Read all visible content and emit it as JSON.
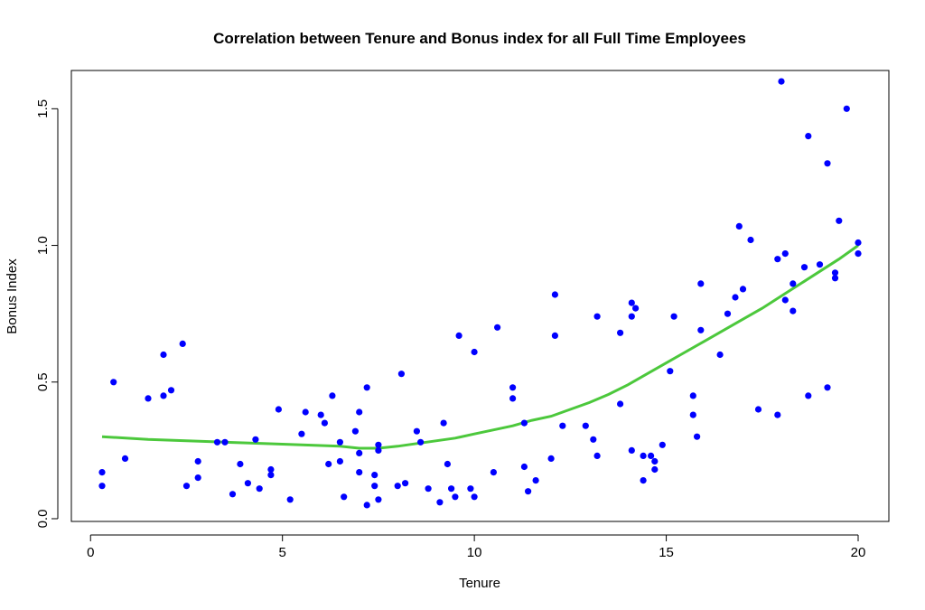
{
  "chart_data": {
    "type": "scatter",
    "title": "Correlation between Tenure and Bonus index for all Full Time Employees",
    "xlabel": "Tenure",
    "ylabel": "Bonus Index",
    "xlim": [
      -0.5,
      20.8
    ],
    "ylim": [
      -0.01,
      1.64
    ],
    "x_ticks": [
      0,
      5,
      10,
      15,
      20
    ],
    "y_ticks": [
      0.0,
      0.5,
      1.0,
      1.5
    ],
    "x_tick_labels": [
      "0",
      "5",
      "10",
      "15",
      "20"
    ],
    "y_tick_labels": [
      "0.0",
      "0.5",
      "1.0",
      "1.5"
    ],
    "grid": false,
    "legend": false,
    "colors": {
      "points": "#0000ff",
      "trend": "#4cc83c",
      "axis": "#000000"
    },
    "points": [
      [
        0.3,
        0.17
      ],
      [
        0.3,
        0.12
      ],
      [
        0.6,
        0.5
      ],
      [
        0.9,
        0.22
      ],
      [
        1.5,
        0.44
      ],
      [
        1.9,
        0.6
      ],
      [
        1.9,
        0.45
      ],
      [
        2.1,
        0.47
      ],
      [
        2.4,
        0.64
      ],
      [
        2.5,
        0.12
      ],
      [
        2.8,
        0.21
      ],
      [
        2.8,
        0.15
      ],
      [
        3.3,
        0.28
      ],
      [
        3.5,
        0.28
      ],
      [
        3.7,
        0.09
      ],
      [
        3.9,
        0.2
      ],
      [
        4.1,
        0.13
      ],
      [
        4.3,
        0.29
      ],
      [
        4.4,
        0.11
      ],
      [
        4.7,
        0.18
      ],
      [
        4.7,
        0.16
      ],
      [
        4.9,
        0.4
      ],
      [
        5.2,
        0.07
      ],
      [
        5.5,
        0.31
      ],
      [
        5.6,
        0.39
      ],
      [
        6.0,
        0.38
      ],
      [
        6.1,
        0.35
      ],
      [
        6.2,
        0.2
      ],
      [
        6.3,
        0.45
      ],
      [
        6.5,
        0.28
      ],
      [
        6.5,
        0.21
      ],
      [
        6.6,
        0.08
      ],
      [
        6.9,
        0.32
      ],
      [
        7.0,
        0.39
      ],
      [
        7.0,
        0.24
      ],
      [
        7.0,
        0.17
      ],
      [
        7.2,
        0.48
      ],
      [
        7.2,
        0.05
      ],
      [
        7.4,
        0.16
      ],
      [
        7.4,
        0.12
      ],
      [
        7.5,
        0.27
      ],
      [
        7.5,
        0.25
      ],
      [
        7.5,
        0.07
      ],
      [
        8.0,
        0.12
      ],
      [
        8.1,
        0.53
      ],
      [
        8.2,
        0.13
      ],
      [
        8.5,
        0.32
      ],
      [
        8.6,
        0.28
      ],
      [
        8.8,
        0.11
      ],
      [
        9.1,
        0.06
      ],
      [
        9.2,
        0.35
      ],
      [
        9.3,
        0.2
      ],
      [
        9.4,
        0.11
      ],
      [
        9.5,
        0.08
      ],
      [
        9.6,
        0.67
      ],
      [
        9.9,
        0.11
      ],
      [
        10.0,
        0.61
      ],
      [
        10.0,
        0.08
      ],
      [
        10.5,
        0.17
      ],
      [
        10.6,
        0.7
      ],
      [
        11.0,
        0.48
      ],
      [
        11.0,
        0.44
      ],
      [
        11.3,
        0.35
      ],
      [
        11.3,
        0.19
      ],
      [
        11.4,
        0.1
      ],
      [
        11.6,
        0.14
      ],
      [
        12.0,
        0.22
      ],
      [
        12.1,
        0.82
      ],
      [
        12.1,
        0.67
      ],
      [
        12.3,
        0.34
      ],
      [
        12.9,
        0.34
      ],
      [
        13.1,
        0.29
      ],
      [
        13.2,
        0.74
      ],
      [
        13.2,
        0.23
      ],
      [
        13.8,
        0.68
      ],
      [
        13.8,
        0.42
      ],
      [
        14.1,
        0.79
      ],
      [
        14.1,
        0.74
      ],
      [
        14.1,
        0.25
      ],
      [
        14.2,
        0.77
      ],
      [
        14.4,
        0.23
      ],
      [
        14.4,
        0.14
      ],
      [
        14.6,
        0.23
      ],
      [
        14.7,
        0.21
      ],
      [
        14.7,
        0.18
      ],
      [
        14.9,
        0.27
      ],
      [
        15.1,
        0.54
      ],
      [
        15.2,
        0.74
      ],
      [
        15.7,
        0.45
      ],
      [
        15.7,
        0.38
      ],
      [
        15.8,
        0.3
      ],
      [
        15.9,
        0.86
      ],
      [
        15.9,
        0.69
      ],
      [
        16.4,
        0.6
      ],
      [
        16.6,
        0.75
      ],
      [
        16.8,
        0.81
      ],
      [
        16.9,
        1.07
      ],
      [
        17.0,
        0.84
      ],
      [
        17.2,
        1.02
      ],
      [
        17.4,
        0.4
      ],
      [
        17.9,
        0.95
      ],
      [
        17.9,
        0.38
      ],
      [
        18.0,
        1.6
      ],
      [
        18.1,
        0.97
      ],
      [
        18.1,
        0.8
      ],
      [
        18.3,
        0.86
      ],
      [
        18.3,
        0.76
      ],
      [
        18.6,
        0.92
      ],
      [
        18.7,
        1.4
      ],
      [
        18.7,
        0.45
      ],
      [
        19.0,
        0.93
      ],
      [
        19.2,
        1.3
      ],
      [
        19.2,
        0.48
      ],
      [
        19.4,
        0.9
      ],
      [
        19.4,
        0.88
      ],
      [
        19.5,
        1.09
      ],
      [
        19.7,
        1.5
      ],
      [
        20.0,
        1.01
      ],
      [
        20.0,
        0.97
      ]
    ],
    "trend_line": [
      [
        0.3,
        0.3
      ],
      [
        1.5,
        0.29
      ],
      [
        2.5,
        0.285
      ],
      [
        3.5,
        0.28
      ],
      [
        4.5,
        0.275
      ],
      [
        5.5,
        0.27
      ],
      [
        6.5,
        0.265
      ],
      [
        7.0,
        0.258
      ],
      [
        7.5,
        0.258
      ],
      [
        8.0,
        0.265
      ],
      [
        8.5,
        0.275
      ],
      [
        9.0,
        0.285
      ],
      [
        9.5,
        0.295
      ],
      [
        10.0,
        0.31
      ],
      [
        10.5,
        0.325
      ],
      [
        11.0,
        0.34
      ],
      [
        11.5,
        0.36
      ],
      [
        12.0,
        0.375
      ],
      [
        12.5,
        0.4
      ],
      [
        13.0,
        0.425
      ],
      [
        13.5,
        0.455
      ],
      [
        14.0,
        0.49
      ],
      [
        14.5,
        0.53
      ],
      [
        15.0,
        0.57
      ],
      [
        15.5,
        0.61
      ],
      [
        16.0,
        0.65
      ],
      [
        16.5,
        0.69
      ],
      [
        17.0,
        0.73
      ],
      [
        17.5,
        0.77
      ],
      [
        18.0,
        0.815
      ],
      [
        18.5,
        0.86
      ],
      [
        19.0,
        0.905
      ],
      [
        19.5,
        0.95
      ],
      [
        20.0,
        1.0
      ]
    ]
  }
}
